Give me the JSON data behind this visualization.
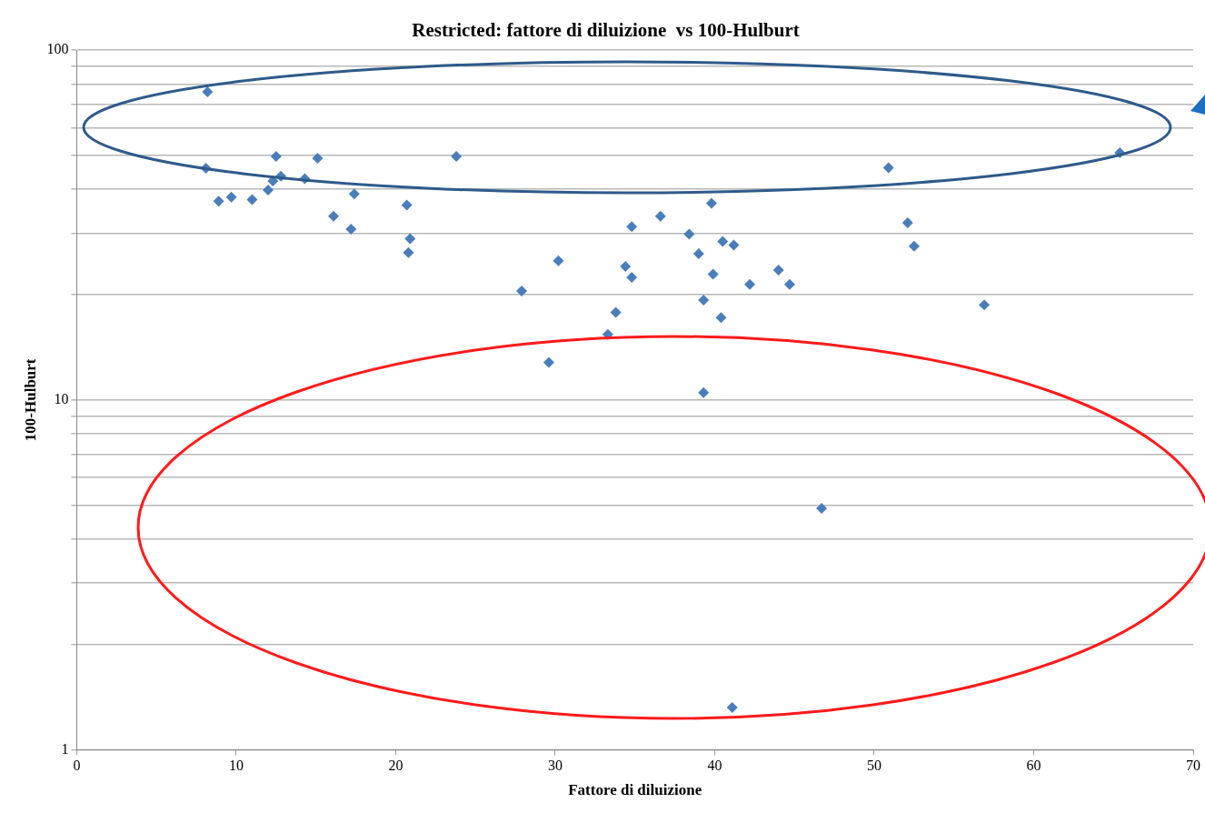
{
  "chart_data": {
    "type": "scatter",
    "title": "Restricted: fattore di diluizione  vs 100-Hulburt",
    "xlabel": "Fattore di diluizione",
    "ylabel": "100-Hulburt",
    "log": "y",
    "grid": "y",
    "marker": "diamond",
    "xlim": [
      0,
      70
    ],
    "xticks": [
      0,
      10,
      20,
      30,
      40,
      50,
      60,
      70
    ],
    "ylim": [
      1,
      100
    ],
    "yticks": [
      1,
      {
        "value": 2,
        "label": null
      },
      {
        "value": 3,
        "label": null
      },
      {
        "value": 4,
        "label": null
      },
      {
        "value": 5,
        "label": null
      },
      {
        "value": 6,
        "label": null
      },
      {
        "value": 7,
        "label": null
      },
      {
        "value": 8,
        "label": null
      },
      {
        "value": 9,
        "label": null
      },
      10,
      {
        "value": 20,
        "label": null
      },
      {
        "value": 30,
        "label": null
      },
      {
        "value": 40,
        "label": null
      },
      {
        "value": 50,
        "label": null
      },
      {
        "value": 60,
        "label": null
      },
      {
        "value": 70,
        "label": null
      },
      {
        "value": 80,
        "label": null
      },
      {
        "value": 90,
        "label": null
      },
      100
    ],
    "x": [
      8.2,
      8.1,
      8.9,
      9.7,
      11.0,
      12.0,
      12.3,
      12.5,
      12.8,
      14.3,
      15.1,
      16.1,
      17.2,
      17.4,
      20.7,
      20.8,
      20.9,
      23.8,
      27.9,
      29.6,
      30.2,
      33.3,
      33.8,
      34.4,
      34.8,
      34.8,
      36.6,
      38.4,
      39.0,
      39.3,
      39.3,
      39.8,
      39.9,
      40.4,
      40.5,
      41.2,
      41.1,
      42.2,
      44.0,
      44.7,
      46.7,
      50.9,
      52.1,
      52.5,
      56.9,
      65.4
    ],
    "series": [
      {
        "color": "#4a7ebb",
        "values": [
          76,
          46,
          37,
          38,
          37.4,
          39.8,
          42.3,
          49.7,
          43.6,
          42.9,
          49.1,
          33.5,
          30.8,
          38.8,
          36.1,
          26.4,
          28.9,
          49.7,
          20.5,
          12.8,
          25,
          15.4,
          17.8,
          24.1,
          31.3,
          22.4,
          33.5,
          29.8,
          26.2,
          19.3,
          10.5,
          36.5,
          22.9,
          17.2,
          28.4,
          27.7,
          1.32,
          21.4,
          23.5,
          21.4,
          4.9,
          46.1,
          32.1,
          27.5,
          18.7,
          50.9
        ]
      }
    ]
  }
}
